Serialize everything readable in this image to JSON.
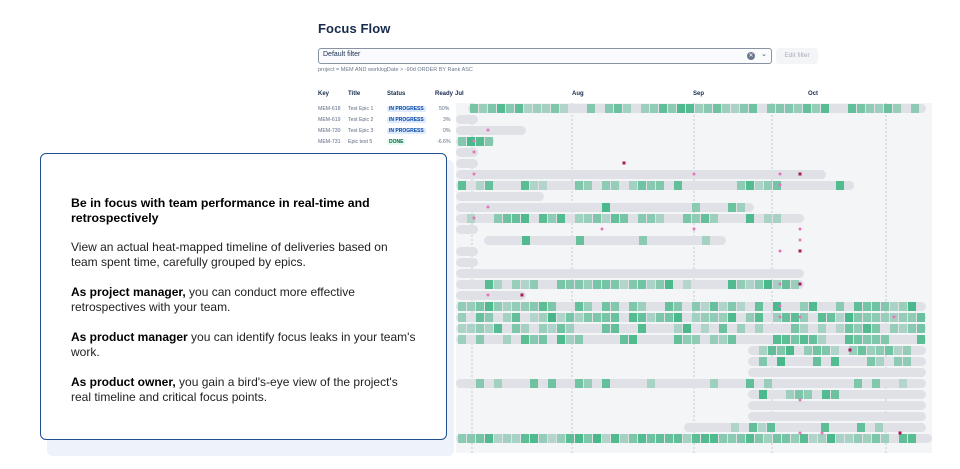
{
  "app": {
    "title": "Focus Flow",
    "filter": {
      "value": "Default filter",
      "edit_label": "Edit filter"
    },
    "jql": "project = MEM AND worklogDate > -90d ORDER BY Rank ASC"
  },
  "table": {
    "columns": [
      "Key",
      "Title",
      "Status",
      "Ready"
    ],
    "rows": [
      {
        "key": "MEM-618",
        "title": "Test Epic 1",
        "status": "IN PROGRESS",
        "ready": "50%"
      },
      {
        "key": "MEM-619",
        "title": "Test Epic 2",
        "status": "IN PROGRESS",
        "ready": "3%"
      },
      {
        "key": "MEM-730",
        "title": "Test Epic 3",
        "status": "IN PROGRESS",
        "ready": "0%"
      },
      {
        "key": "MEM-731",
        "title": "Epic test 5",
        "status": "DONE",
        "ready": "-6.6%"
      }
    ]
  },
  "timeline": {
    "months": [
      "Jul",
      "Aug",
      "Sep",
      "Oct"
    ],
    "colors": {
      "track": "#dfe1e6",
      "heat": "#36b37e",
      "dot": "#e774bb",
      "dot_dark": "#a6195a"
    }
  },
  "info": {
    "heading": "Be in focus with team performance in real-time and retrospectively",
    "intro": "View an actual heat-mapped timeline of deliveries based on team spent time, carefully grouped by epics.",
    "items": [
      {
        "role": "As project manager,",
        "text": " you can conduct more effective retrospectives with your team."
      },
      {
        "role": "As product manager",
        "text": " you can identify focus leaks in your team's work."
      },
      {
        "role": "As product owner,",
        "text": " you gain a bird's-eye view of the project's real timeline and critical focus points."
      }
    ]
  }
}
